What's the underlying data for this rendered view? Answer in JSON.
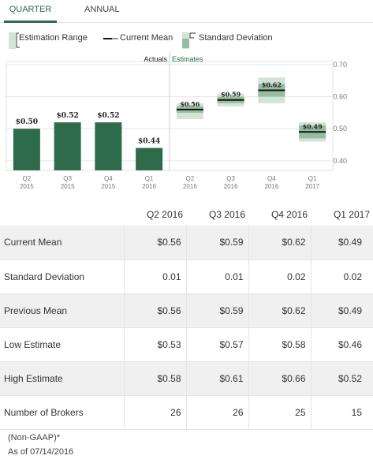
{
  "tabs": [
    {
      "label": "QUARTER",
      "active": true
    },
    {
      "label": "ANNUAL",
      "active": false
    }
  ],
  "legend": {
    "range": "Estimation Range",
    "mean": "Current Mean",
    "sd": "Standard Deviation"
  },
  "colors": {
    "actual_bar": "#2e6b4a",
    "range_fill": "#d3e4d7",
    "sd_fill": "#97bca0",
    "mean_line": "#111111",
    "accent": "#2e6b4a"
  },
  "chart_data": {
    "type": "bar",
    "sections": {
      "actuals": "Actuals",
      "estimates": "Estimates"
    },
    "categories": [
      {
        "q": "Q2",
        "y": "2015"
      },
      {
        "q": "Q3",
        "y": "2015"
      },
      {
        "q": "Q4",
        "y": "2015"
      },
      {
        "q": "Q1",
        "y": "2016"
      },
      {
        "q": "Q2",
        "y": "2016"
      },
      {
        "q": "Q3",
        "y": "2016"
      },
      {
        "q": "Q4",
        "y": "2016"
      },
      {
        "q": "Q1",
        "y": "2017"
      }
    ],
    "actuals": [
      {
        "value": 0.5,
        "label": "$0.50"
      },
      {
        "value": 0.52,
        "label": "$0.52"
      },
      {
        "value": 0.52,
        "label": "$0.52"
      },
      {
        "value": 0.44,
        "label": "$0.44"
      }
    ],
    "estimates": [
      {
        "mean": 0.56,
        "sd": 0.01,
        "low": 0.53,
        "high": 0.58,
        "label": "$0.56"
      },
      {
        "mean": 0.59,
        "sd": 0.01,
        "low": 0.57,
        "high": 0.61,
        "label": "$0.59"
      },
      {
        "mean": 0.62,
        "sd": 0.02,
        "low": 0.58,
        "high": 0.66,
        "label": "$0.62"
      },
      {
        "mean": 0.49,
        "sd": 0.02,
        "low": 0.46,
        "high": 0.52,
        "label": "$0.49"
      }
    ],
    "yticks": [
      {
        "value": 0.4,
        "label": "0.40"
      },
      {
        "value": 0.5,
        "label": "0.50"
      },
      {
        "value": 0.6,
        "label": "0.60"
      },
      {
        "value": 0.7,
        "label": "0.70"
      }
    ],
    "ylim": [
      0.37,
      0.71
    ],
    "grid": true
  },
  "table": {
    "headers": [
      "Q2 2016",
      "Q3 2016",
      "Q4 2016",
      "Q1 2017"
    ],
    "rows": [
      {
        "label": "Current Mean",
        "values": [
          "$0.56",
          "$0.59",
          "$0.62",
          "$0.49"
        ]
      },
      {
        "label": "Standard Deviation",
        "values": [
          "0.01",
          "0.01",
          "0.02",
          "0.02"
        ]
      },
      {
        "label": "Previous Mean",
        "values": [
          "$0.56",
          "$0.59",
          "$0.62",
          "$0.49"
        ]
      },
      {
        "label": "Low Estimate",
        "values": [
          "$0.53",
          "$0.57",
          "$0.58",
          "$0.46"
        ]
      },
      {
        "label": "High Estimate",
        "values": [
          "$0.58",
          "$0.61",
          "$0.66",
          "$0.52"
        ]
      },
      {
        "label": "Number of Brokers",
        "values": [
          "26",
          "26",
          "25",
          "15"
        ]
      }
    ]
  },
  "footer": {
    "note": "(Non-GAAP)*",
    "date": "As of 07/14/2016"
  }
}
